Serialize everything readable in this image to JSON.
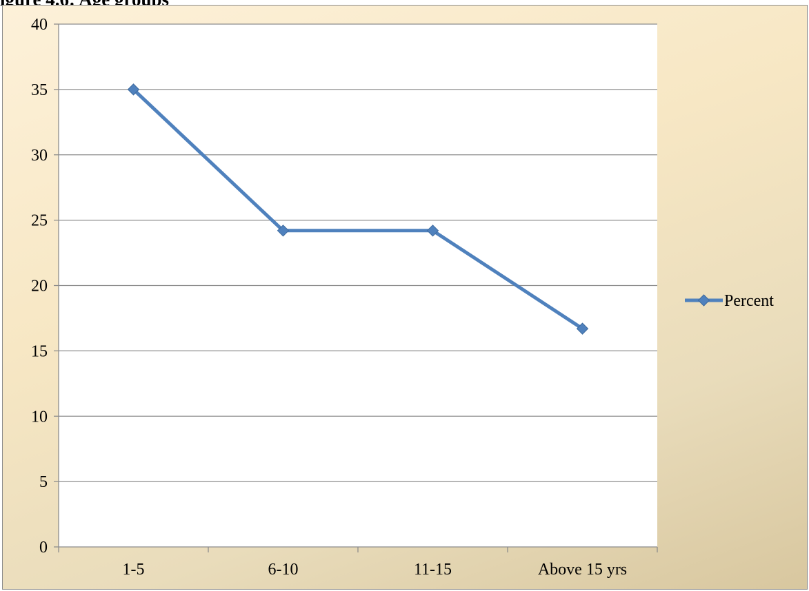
{
  "figure_heading": "igure 4.6: Age groups",
  "chart_data": {
    "type": "line",
    "categories": [
      "1-5",
      "6-10",
      "11-15",
      "Above 15 yrs"
    ],
    "series": [
      {
        "name": "Percent",
        "values": [
          35,
          24.2,
          24.2,
          16.7
        ],
        "color": "#4f81bd",
        "marker": "diamond"
      }
    ],
    "ylim": [
      0,
      40
    ],
    "yticks": [
      0,
      5,
      10,
      15,
      20,
      25,
      30,
      35,
      40
    ],
    "grid": true,
    "legend_position": "right",
    "plot_background": "#ffffff",
    "chart_background": "#f7e7c4"
  }
}
